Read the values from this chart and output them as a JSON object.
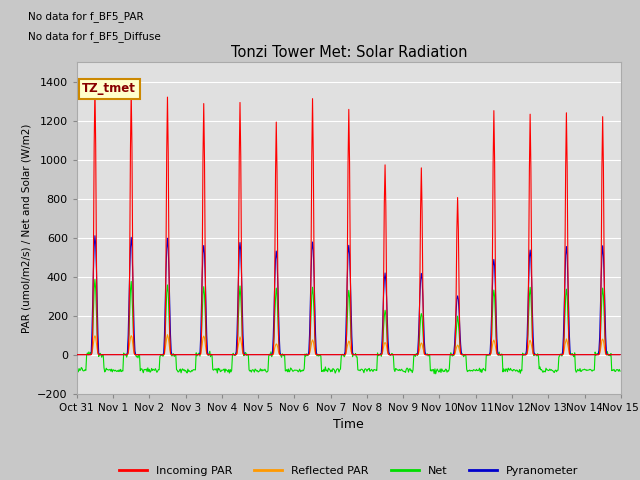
{
  "title": "Tonzi Tower Met: Solar Radiation",
  "ylabel": "PAR (umol/m2/s) / Net and Solar (W/m2)",
  "xlabel": "Time",
  "no_data_text": [
    "No data for f_BF5_PAR",
    "No data for f_BF5_Diffuse"
  ],
  "label_box_text": "TZ_tmet",
  "label_box_color": "#ffffcc",
  "label_box_border": "#cc8800",
  "ylim": [
    -200,
    1500
  ],
  "yticks": [
    -200,
    0,
    200,
    400,
    600,
    800,
    1000,
    1200,
    1400
  ],
  "fig_bg_color": "#c8c8c8",
  "plot_bg_color": "#e0e0e0",
  "grid_color": "white",
  "legend_labels": [
    "Incoming PAR",
    "Reflected PAR",
    "Net",
    "Pyranometer"
  ],
  "legend_colors": [
    "#ff0000",
    "#ff9900",
    "#00dd00",
    "#0000cc"
  ],
  "x_tick_labels": [
    "Oct 31",
    "Nov 1",
    "Nov 2",
    "Nov 3",
    "Nov 4",
    "Nov 5",
    "Nov 6",
    "Nov 7",
    "Nov 8",
    "Nov 9",
    "Nov 10",
    "Nov 11",
    "Nov 12",
    "Nov 13",
    "Nov 14",
    "Nov 15"
  ],
  "incoming_peaks": [
    1380,
    1360,
    1330,
    1290,
    1290,
    1190,
    1300,
    1260,
    990,
    950,
    830,
    1250,
    1230,
    1240
  ],
  "pyranometer_peaks": [
    610,
    600,
    590,
    570,
    580,
    530,
    580,
    560,
    420,
    420,
    305,
    490,
    540,
    550
  ],
  "net_peaks": [
    380,
    370,
    360,
    350,
    350,
    340,
    350,
    330,
    230,
    220,
    200,
    330,
    340,
    340
  ],
  "reflected_peaks": [
    100,
    100,
    100,
    95,
    90,
    55,
    75,
    70,
    65,
    60,
    50,
    75,
    75,
    80
  ],
  "net_night": -80,
  "line_width": 0.8,
  "total_days": 15
}
